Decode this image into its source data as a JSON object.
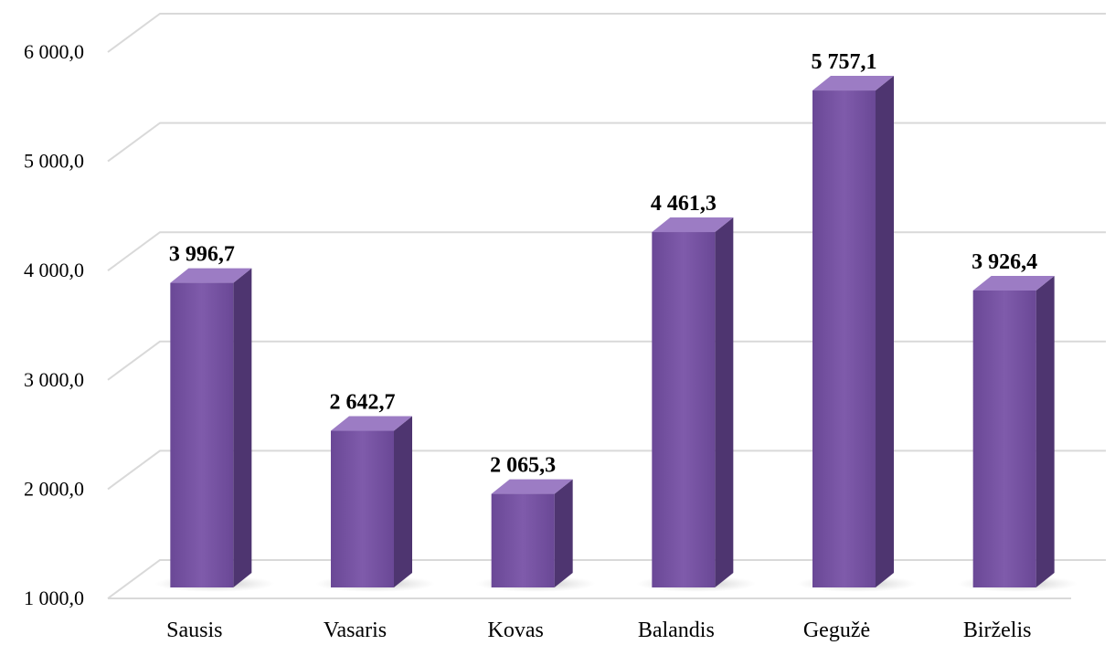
{
  "chart_data": {
    "type": "bar",
    "categories": [
      "Sausis",
      "Vasaris",
      "Kovas",
      "Balandis",
      "Gegužė",
      "Birželis"
    ],
    "values": [
      3996.7,
      2642.7,
      2065.3,
      4461.3,
      5757.1,
      3926.4
    ],
    "value_labels": [
      "3 996,7",
      "2 642,7",
      "2 065,3",
      "4 461,3",
      "5 757,1",
      "3 926,4"
    ],
    "y_ticks": [
      1000,
      2000,
      3000,
      4000,
      5000,
      6000
    ],
    "y_tick_labels": [
      "1 000,0",
      "2 000,0",
      "3 000,0",
      "4 000,0",
      "5 000,0",
      "6 000,0"
    ],
    "ylim": [
      1000,
      6000
    ],
    "title": "",
    "xlabel": "",
    "ylabel": "",
    "grid": true,
    "style": "3d-column",
    "colors": {
      "bar_front": "#7a56a6",
      "bar_top": "#9c7cc4",
      "bar_side": "#4e3570",
      "grid": "#d9d9d9"
    }
  }
}
